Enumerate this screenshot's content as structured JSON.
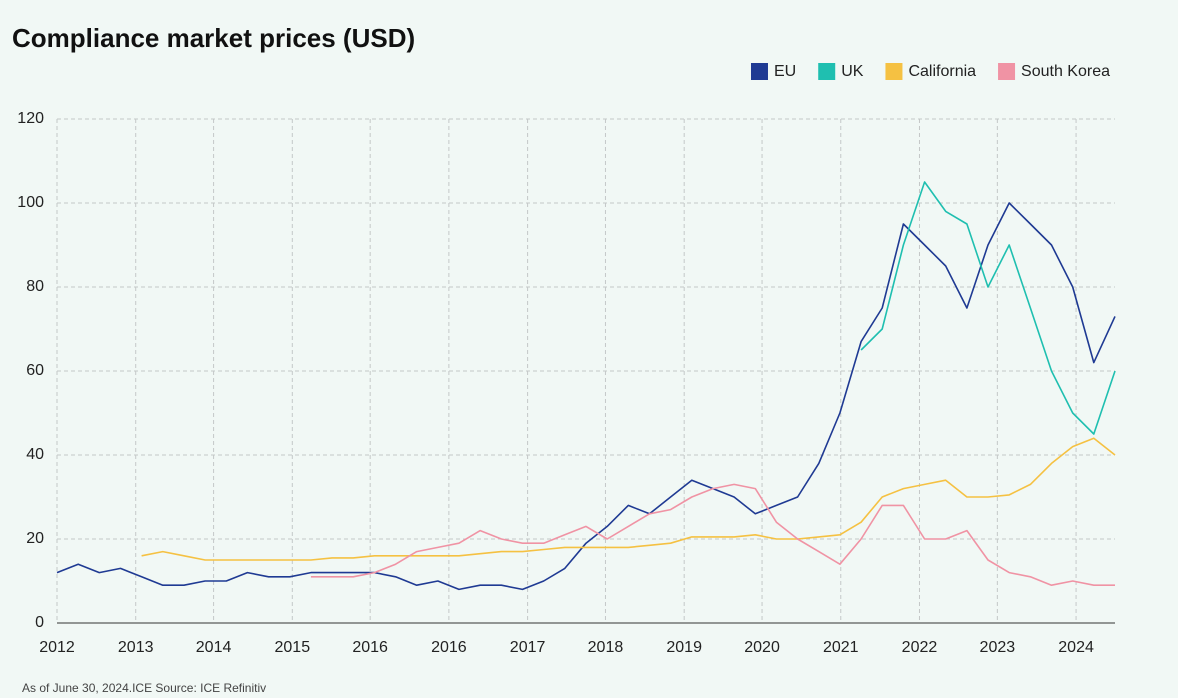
{
  "chart_data": {
    "type": "line",
    "title": "Compliance market prices (USD)",
    "note": "As of June 30, 2024.ICE Source: ICE Refinitiv",
    "x": [
      2012,
      2012.25,
      2012.5,
      2012.75,
      2013,
      2013.25,
      2013.5,
      2013.75,
      2014,
      2014.25,
      2014.5,
      2014.75,
      2015,
      2015.25,
      2015.5,
      2015.75,
      2016,
      2016.25,
      2016.5,
      2016.75,
      2017,
      2017.25,
      2017.5,
      2017.75,
      2018,
      2018.25,
      2018.5,
      2018.75,
      2019,
      2019.25,
      2019.5,
      2019.75,
      2020,
      2020.25,
      2020.5,
      2020.75,
      2021,
      2021.25,
      2021.5,
      2021.75,
      2022,
      2022.25,
      2022.5,
      2022.75,
      2023,
      2023.25,
      2023.5,
      2023.75,
      2024,
      2024.25,
      2024.5
    ],
    "series": [
      {
        "name": "EU",
        "color": "#1f3a93",
        "values": [
          12,
          14,
          12,
          13,
          11,
          9,
          9,
          10,
          10,
          12,
          11,
          11,
          12,
          12,
          12,
          12,
          11,
          9,
          10,
          8,
          9,
          9,
          8,
          10,
          13,
          19,
          23,
          28,
          26,
          30,
          34,
          32,
          30,
          26,
          28,
          30,
          38,
          50,
          67,
          75,
          95,
          90,
          85,
          75,
          90,
          100,
          95,
          90,
          80,
          62,
          73
        ]
      },
      {
        "name": "UK",
        "color": "#1fbfb0",
        "values": [
          null,
          null,
          null,
          null,
          null,
          null,
          null,
          null,
          null,
          null,
          null,
          null,
          null,
          null,
          null,
          null,
          null,
          null,
          null,
          null,
          null,
          null,
          null,
          null,
          null,
          null,
          null,
          null,
          null,
          null,
          null,
          null,
          null,
          null,
          null,
          null,
          null,
          null,
          65,
          70,
          90,
          105,
          98,
          95,
          80,
          90,
          75,
          60,
          50,
          45,
          60
        ]
      },
      {
        "name": "California",
        "color": "#f5c142",
        "values": [
          null,
          null,
          null,
          null,
          16,
          17,
          16,
          15,
          15,
          15,
          15,
          15,
          15,
          15.5,
          15.5,
          16,
          16,
          16,
          16,
          16,
          16.5,
          17,
          17,
          17.5,
          18,
          18,
          18,
          18,
          18.5,
          19,
          20.5,
          20.5,
          20.5,
          21,
          20,
          20,
          20.5,
          21,
          24,
          30,
          32,
          33,
          34,
          30,
          30,
          30.5,
          33,
          38,
          42,
          44,
          40
        ]
      },
      {
        "name": "South Korea",
        "color": "#f093a4",
        "values": [
          null,
          null,
          null,
          null,
          null,
          null,
          null,
          null,
          null,
          null,
          null,
          null,
          11,
          11,
          11,
          12,
          14,
          17,
          18,
          19,
          22,
          20,
          19,
          19,
          21,
          23,
          20,
          23,
          26,
          27,
          30,
          32,
          33,
          32,
          24,
          20,
          17,
          14,
          20,
          28,
          28,
          20,
          20,
          22,
          15,
          12,
          11,
          9,
          10,
          9,
          9
        ]
      }
    ],
    "xlim": [
      2012,
      2024.5
    ],
    "xticks": [
      {
        "value": 2012,
        "label": "2012"
      },
      {
        "value": 2012.93,
        "label": "2013"
      },
      {
        "value": 2013.85,
        "label": "2014"
      },
      {
        "value": 2014.78,
        "label": "2015"
      },
      {
        "value": 2015.7,
        "label": "2016"
      },
      {
        "value": 2016.63,
        "label": "2016"
      },
      {
        "value": 2017.56,
        "label": "2017"
      },
      {
        "value": 2018.48,
        "label": "2018"
      },
      {
        "value": 2019.41,
        "label": "2019"
      },
      {
        "value": 2020.33,
        "label": "2020"
      },
      {
        "value": 2021.26,
        "label": "2021"
      },
      {
        "value": 2022.19,
        "label": "2022"
      },
      {
        "value": 2023.11,
        "label": "2023"
      },
      {
        "value": 2024.04,
        "label": "2024"
      }
    ],
    "ylim": [
      0,
      120
    ],
    "yticks": [
      0,
      20,
      40,
      60,
      80,
      100,
      120
    ],
    "grid": true,
    "legend": "top-right"
  }
}
